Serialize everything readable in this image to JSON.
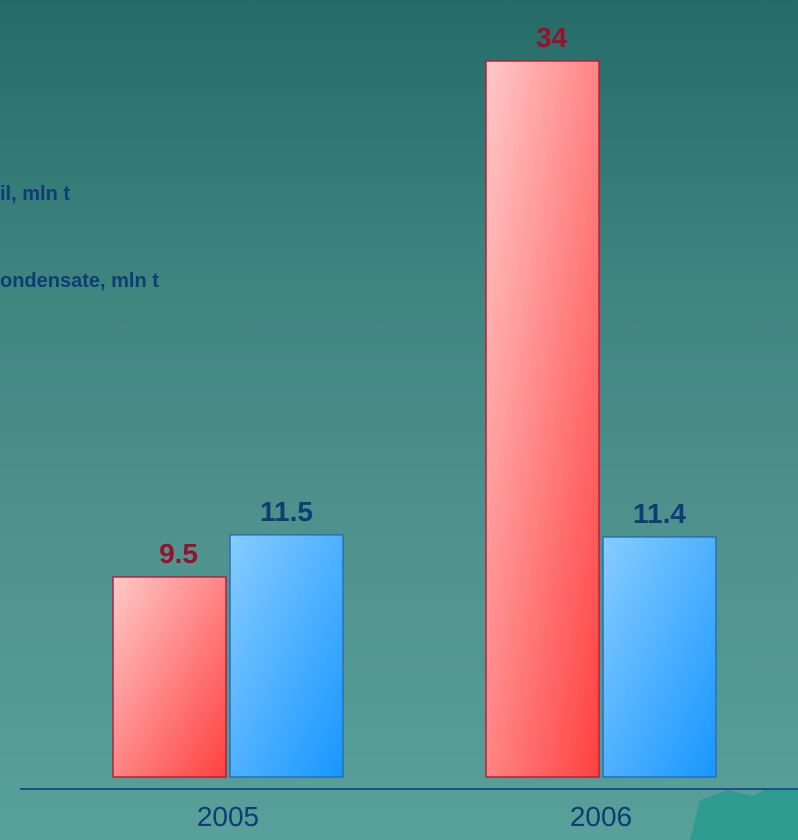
{
  "chart_data": {
    "type": "bar",
    "categories": [
      "2005",
      "2006"
    ],
    "series": [
      {
        "name": "il, mln t",
        "values": [
          9.5,
          34
        ],
        "color": "#ff4d4d",
        "label_color": "#9a0f2a"
      },
      {
        "name": "ondensate, mln t",
        "values": [
          11.5,
          11.4
        ],
        "color": "#2299ff",
        "label_color": "#0f3d73"
      }
    ],
    "title": "",
    "xlabel": "",
    "ylabel": "",
    "ylim": [
      0,
      34
    ],
    "grid": false,
    "legend": "left"
  }
}
